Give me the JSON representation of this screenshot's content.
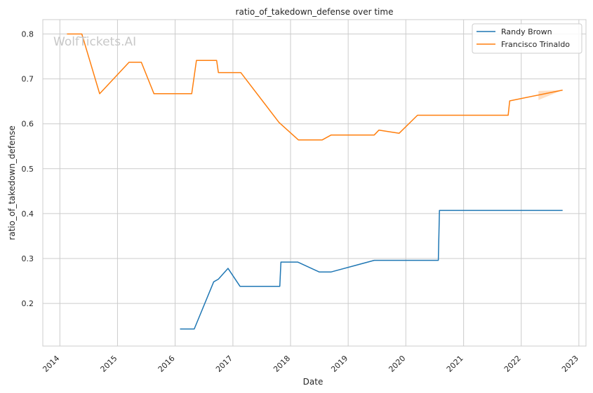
{
  "chart_data": {
    "type": "line",
    "title": "ratio_of_takedown_defense over time",
    "xlabel": "Date",
    "ylabel": "ratio_of_takedown_defense",
    "watermark": "WolfTickets.AI",
    "x_ticks": [
      "2014",
      "2015",
      "2016",
      "2017",
      "2018",
      "2019",
      "2020",
      "2021",
      "2022",
      "2023"
    ],
    "y_ticks": [
      "0.2",
      "0.3",
      "0.4",
      "0.5",
      "0.6",
      "0.7",
      "0.8"
    ],
    "xlim": [
      "2013-09-15",
      "2023-02-15"
    ],
    "ylim": [
      0.105,
      0.832
    ],
    "grid": true,
    "legend_position": "top-right",
    "series": [
      {
        "name": "Randy Brown",
        "color": "#1f77b4",
        "points": [
          [
            "2016-02-01",
            0.143
          ],
          [
            "2016-05-01",
            0.143
          ],
          [
            "2016-09-01",
            0.248
          ],
          [
            "2016-10-01",
            0.254
          ],
          [
            "2016-12-01",
            0.278
          ],
          [
            "2017-02-15",
            0.238
          ],
          [
            "2017-10-25",
            0.238
          ],
          [
            "2017-11-01",
            0.292
          ],
          [
            "2018-02-15",
            0.292
          ],
          [
            "2018-07-01",
            0.27
          ],
          [
            "2018-09-15",
            0.27
          ],
          [
            "2019-06-15",
            0.296
          ],
          [
            "2020-07-25",
            0.296
          ],
          [
            "2020-08-01",
            0.407
          ],
          [
            "2022-09-20",
            0.407
          ]
        ]
      },
      {
        "name": "Francisco Trinaldo",
        "color": "#ff7f0e",
        "points": [
          [
            "2014-02-15",
            0.8
          ],
          [
            "2014-05-20",
            0.8
          ],
          [
            "2014-09-10",
            0.667
          ],
          [
            "2015-03-15",
            0.737
          ],
          [
            "2015-06-01",
            0.737
          ],
          [
            "2015-08-20",
            0.667
          ],
          [
            "2016-04-15",
            0.667
          ],
          [
            "2016-05-15",
            0.741
          ],
          [
            "2016-09-20",
            0.741
          ],
          [
            "2016-10-01",
            0.714
          ],
          [
            "2017-02-20",
            0.714
          ],
          [
            "2017-10-20",
            0.603
          ],
          [
            "2018-02-20",
            0.564
          ],
          [
            "2018-07-20",
            0.564
          ],
          [
            "2018-09-15",
            0.575
          ],
          [
            "2019-06-15",
            0.575
          ],
          [
            "2019-07-15",
            0.586
          ],
          [
            "2019-11-20",
            0.579
          ],
          [
            "2020-03-15",
            0.619
          ],
          [
            "2021-10-10",
            0.619
          ],
          [
            "2021-10-20",
            0.651
          ],
          [
            "2022-09-20",
            0.675
          ]
        ],
        "band": [
          [
            "2022-04-20",
            0.653,
            0.673
          ],
          [
            "2022-09-20",
            0.675,
            0.675
          ]
        ]
      }
    ]
  }
}
